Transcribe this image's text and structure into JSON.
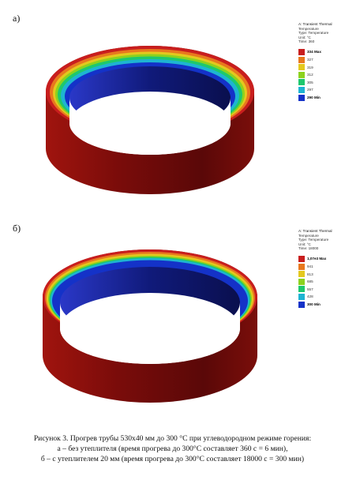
{
  "figure": {
    "panels": [
      {
        "label": "a)",
        "legend": {
          "title": "A: Transient Thermal",
          "lines": [
            "Temperature",
            "Type: Temperature",
            "Unit: °C",
            "Time: 360"
          ],
          "levels": [
            {
              "text": "334 Max",
              "color": "#c81e1e",
              "emph": true
            },
            {
              "text": "327",
              "color": "#e8781e",
              "emph": false
            },
            {
              "text": "319",
              "color": "#e4c81e",
              "emph": false
            },
            {
              "text": "312",
              "color": "#8cd21e",
              "emph": false
            },
            {
              "text": "305",
              "color": "#1ec86e",
              "emph": false
            },
            {
              "text": "297",
              "color": "#1eb4d2",
              "emph": false
            },
            {
              "text": "290 Min",
              "color": "#1432c8",
              "emph": true
            }
          ]
        }
      },
      {
        "label": "б)",
        "legend": {
          "title": "A: Transient Thermal",
          "lines": [
            "Temperature",
            "Type: Temperature",
            "Unit: °C",
            "Time: 18000"
          ],
          "levels": [
            {
              "text": "1,07e3 Max",
              "color": "#c81e1e",
              "emph": true
            },
            {
              "text": "941",
              "color": "#e8781e",
              "emph": false
            },
            {
              "text": "813",
              "color": "#e4c81e",
              "emph": false
            },
            {
              "text": "685",
              "color": "#8cd21e",
              "emph": false
            },
            {
              "text": "557",
              "color": "#1ec86e",
              "emph": false
            },
            {
              "text": "428",
              "color": "#1eb4d2",
              "emph": false
            },
            {
              "text": "300 Min",
              "color": "#1432c8",
              "emph": true
            }
          ]
        }
      }
    ],
    "caption": [
      "Рисунок 3. Прогрев трубы 530х40 мм до 300 °С при углеводородном режиме горения:",
      "а – без утеплителя (время прогрева до 300°С составляет 360 с = 6 мин),",
      "б – с утеплителем 20 мм (время прогрева до 300°С составляет 18000 с = 300 мин)"
    ]
  }
}
